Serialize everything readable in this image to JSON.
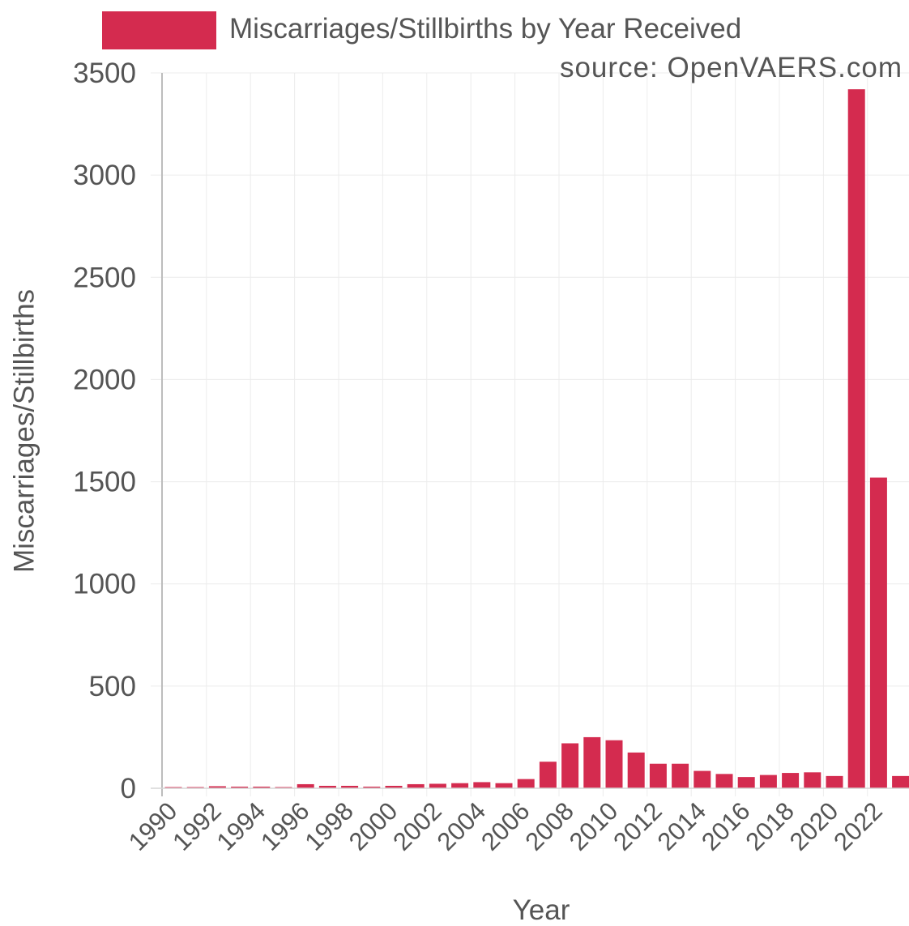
{
  "chart_data": {
    "type": "bar",
    "legend": "Miscarriages/Stillbirths by Year Received",
    "source_note": "source: OpenVAERS.com",
    "xlabel": "Year",
    "ylabel": "Miscarriages/Stillbirths",
    "ylim": [
      0,
      3500
    ],
    "yticks": [
      0,
      500,
      1000,
      1500,
      2000,
      2500,
      3000,
      3500
    ],
    "xtick_labels": [
      "1990",
      "1992",
      "1994",
      "1996",
      "1998",
      "2000",
      "2002",
      "2004",
      "2006",
      "2008",
      "2010",
      "2012",
      "2014",
      "2016",
      "2018",
      "2020",
      "2022"
    ],
    "categories": [
      "1990",
      "1991",
      "1992",
      "1993",
      "1994",
      "1995",
      "1996",
      "1997",
      "1998",
      "1999",
      "2000",
      "2001",
      "2002",
      "2003",
      "2004",
      "2005",
      "2006",
      "2007",
      "2008",
      "2009",
      "2010",
      "2011",
      "2012",
      "2013",
      "2014",
      "2015",
      "2016",
      "2017",
      "2018",
      "2019",
      "2020",
      "2021",
      "2022",
      "2023"
    ],
    "values": [
      5,
      3,
      10,
      8,
      8,
      5,
      20,
      12,
      12,
      8,
      12,
      20,
      22,
      25,
      30,
      25,
      45,
      130,
      220,
      250,
      235,
      175,
      120,
      120,
      85,
      70,
      55,
      65,
      75,
      78,
      60,
      3420,
      1520,
      60
    ],
    "bar_color": "#d42b4f",
    "grid": true,
    "legend_position": "top"
  }
}
